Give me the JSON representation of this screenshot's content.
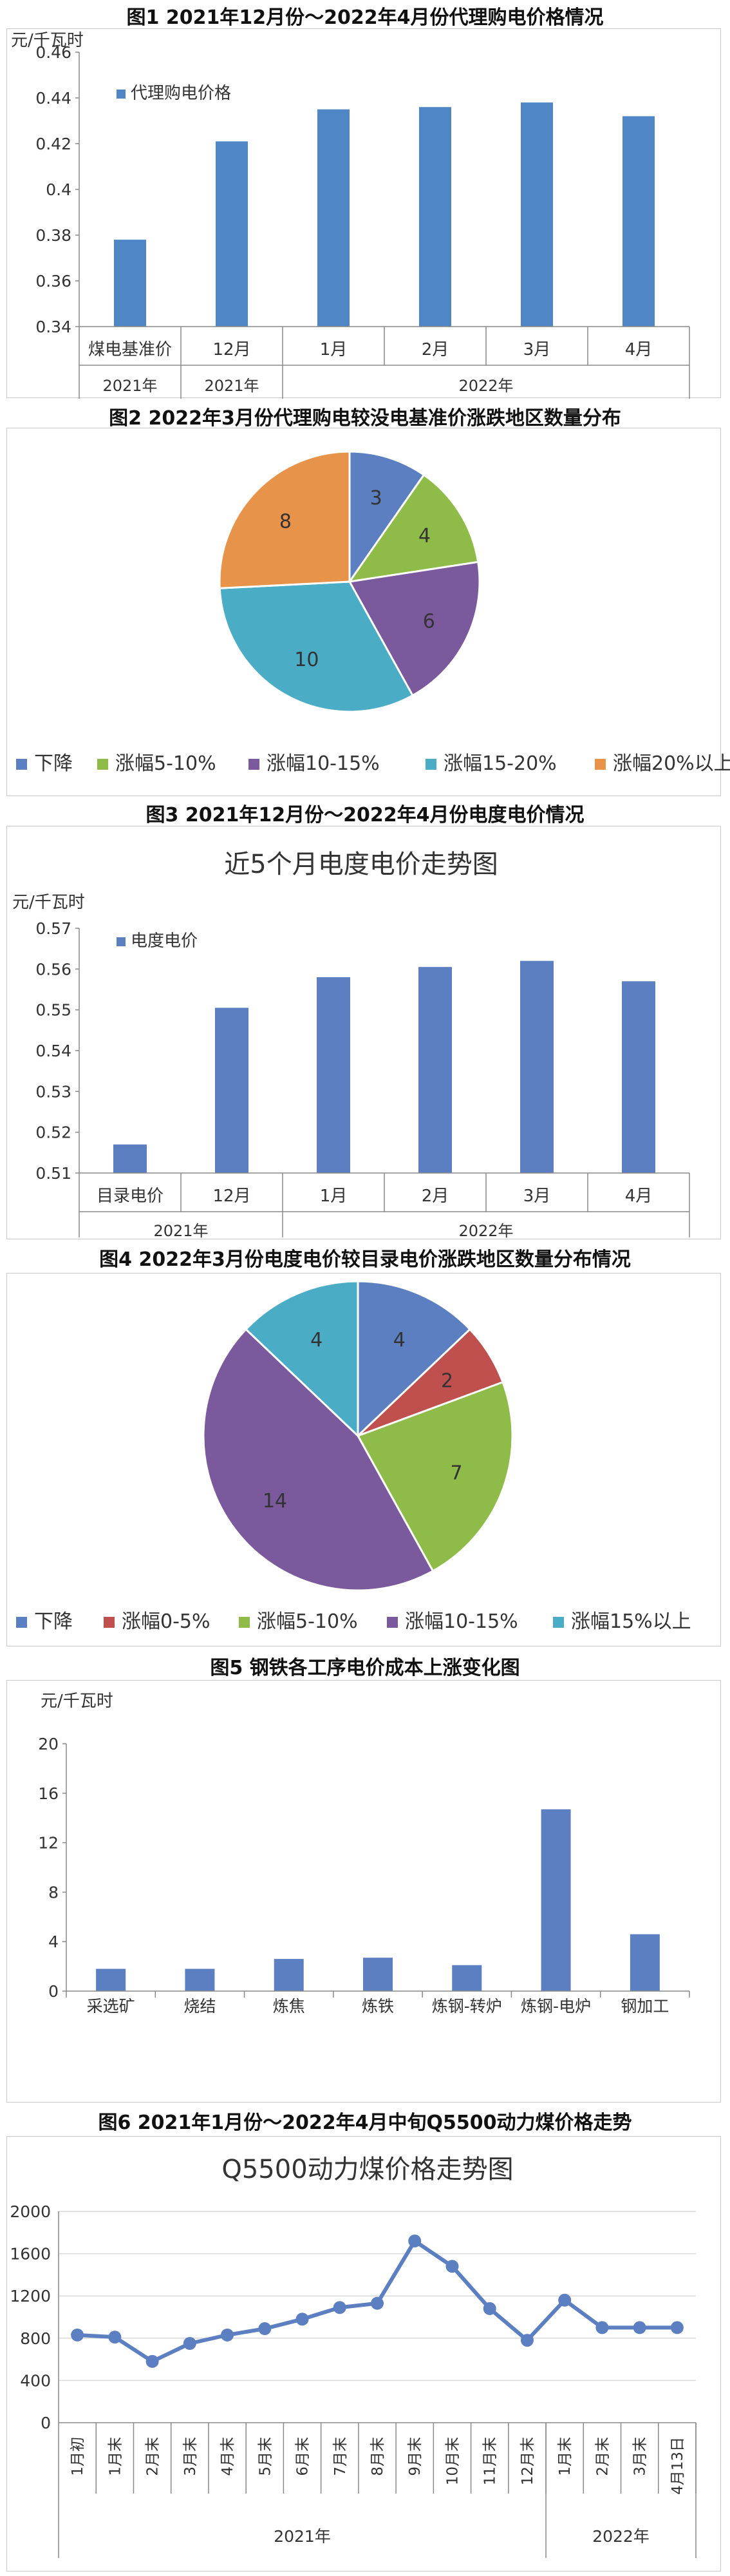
{
  "figures": {
    "f1": {
      "caption": "图1 2021年12月份～2022年4月份代理购电价格情况"
    },
    "f2": {
      "caption": "图2 2022年3月份代理购电较没电基准价涨跌地区数量分布"
    },
    "f3": {
      "caption": "图3 2021年12月份～2022年4月份电度电价情况"
    },
    "f4": {
      "caption": "图4 2022年3月份电度电价较目录电价涨跌地区数量分布情况"
    },
    "f5": {
      "caption": "图5 钢铁各工序电价成本上涨变化图"
    },
    "f6": {
      "caption": "图6 2021年1月份～2022年4月中旬Q5500动力煤价格走势"
    }
  },
  "chart_data": [
    {
      "type": "bar",
      "title": "",
      "ylabel": "元/千瓦时",
      "legend": "代理购电价格",
      "legend_position": "top-left",
      "categories": [
        "煤电基准价",
        "12月",
        "1月",
        "2月",
        "3月",
        "4月"
      ],
      "groups": [
        "2021年",
        "2021年",
        "2022年"
      ],
      "values": [
        0.378,
        0.421,
        0.435,
        0.436,
        0.438,
        0.432
      ],
      "ylim": [
        0.34,
        0.46
      ],
      "yticks": [
        "0.34",
        "0.36",
        "0.38",
        "0.4",
        "0.42",
        "0.44",
        "0.46"
      ],
      "color": "#4f86c6"
    },
    {
      "type": "pie",
      "labels": [
        "下降",
        "涨幅5-10%",
        "涨幅10-15%",
        "涨幅15-20%",
        "涨幅20%以上"
      ],
      "values": [
        3,
        4,
        6,
        10,
        8
      ],
      "colors": [
        "#5b7fc1",
        "#8fbc48",
        "#7a5a9c",
        "#4bacc6",
        "#e8934a"
      ],
      "legend_position": "bottom"
    },
    {
      "type": "bar",
      "title": "近5个月电度电价走势图",
      "ylabel": "元/千瓦时",
      "legend": "电度电价",
      "legend_position": "top-left",
      "categories": [
        "目录电价",
        "12月",
        "1月",
        "2月",
        "3月",
        "4月"
      ],
      "groups": [
        "2021年",
        "2022年"
      ],
      "values": [
        0.517,
        0.5505,
        0.558,
        0.5605,
        0.562,
        0.557
      ],
      "ylim": [
        0.51,
        0.57
      ],
      "yticks": [
        "0.51",
        "0.52",
        "0.53",
        "0.54",
        "0.55",
        "0.56",
        "0.57"
      ],
      "color": "#5b7fc1"
    },
    {
      "type": "pie",
      "labels": [
        "下降",
        "涨幅0-5%",
        "涨幅5-10%",
        "涨幅10-15%",
        "涨幅15%以上"
      ],
      "values": [
        4,
        2,
        7,
        14,
        4
      ],
      "colors": [
        "#5b7fc1",
        "#c0504d",
        "#8fbc48",
        "#7a5a9c",
        "#4bacc6"
      ],
      "legend_position": "bottom"
    },
    {
      "type": "bar",
      "title": "",
      "ylabel": "元/千瓦时",
      "categories": [
        "采选矿",
        "烧结",
        "炼焦",
        "炼铁",
        "炼钢-转炉",
        "炼钢-电炉",
        "钢加工"
      ],
      "values": [
        1.8,
        1.8,
        2.6,
        2.7,
        2.1,
        14.7,
        4.6
      ],
      "ylim": [
        0,
        20
      ],
      "yticks": [
        "0",
        "4",
        "8",
        "12",
        "16",
        "20"
      ],
      "color": "#5b7fc1"
    },
    {
      "type": "line",
      "title": "Q5500动力煤价格走势图",
      "categories": [
        "1月初",
        "1月末",
        "2月末",
        "3月末",
        "4月末",
        "5月末",
        "6月末",
        "7月末",
        "8月末",
        "9月末",
        "10月末",
        "11月末",
        "12月末",
        "1月末",
        "2月末",
        "3月末",
        "4月13日"
      ],
      "groups": [
        "2021年",
        "2022年"
      ],
      "values": [
        830,
        810,
        580,
        750,
        830,
        890,
        980,
        1090,
        1130,
        1720,
        1480,
        1080,
        780,
        1160,
        900,
        900,
        900
      ],
      "ylim": [
        0,
        2000
      ],
      "yticks": [
        "0",
        "400",
        "800",
        "1200",
        "1600",
        "2000"
      ],
      "color": "#5b7fc1"
    }
  ]
}
